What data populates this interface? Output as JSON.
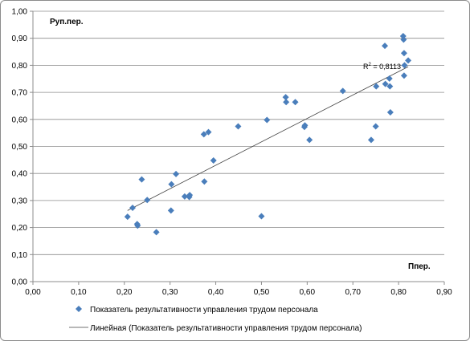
{
  "chart_data": {
    "type": "scatter",
    "x_ticks": [
      "0,00",
      "0,10",
      "0,20",
      "0,30",
      "0,40",
      "0,50",
      "0,60",
      "0,70",
      "0,80",
      "0,90"
    ],
    "y_ticks": [
      "0,00",
      "0,10",
      "0,20",
      "0,30",
      "0,40",
      "0,50",
      "0,60",
      "0,70",
      "0,80",
      "0,90",
      "1,00"
    ],
    "xlim": [
      0,
      0.9
    ],
    "ylim": [
      0,
      1.0
    ],
    "xlabel": "Ппер.",
    "ylabel": "Руп.пер.",
    "grid": "horizontal",
    "legend_position": "bottom",
    "annotation": {
      "prefix": "R",
      "superscript": "2",
      "text": " = 0,8113"
    },
    "series": [
      {
        "name": "Показатель результативности управления трудом персонала",
        "color": "#4a7ebb",
        "marker": "diamond",
        "points": [
          [
            0.207,
            0.24
          ],
          [
            0.218,
            0.273
          ],
          [
            0.228,
            0.213
          ],
          [
            0.229,
            0.207
          ],
          [
            0.238,
            0.378
          ],
          [
            0.25,
            0.302
          ],
          [
            0.27,
            0.183
          ],
          [
            0.302,
            0.263
          ],
          [
            0.303,
            0.36
          ],
          [
            0.313,
            0.398
          ],
          [
            0.332,
            0.315
          ],
          [
            0.342,
            0.313
          ],
          [
            0.343,
            0.32
          ],
          [
            0.374,
            0.545
          ],
          [
            0.375,
            0.37
          ],
          [
            0.384,
            0.553
          ],
          [
            0.395,
            0.448
          ],
          [
            0.449,
            0.574
          ],
          [
            0.5,
            0.242
          ],
          [
            0.512,
            0.598
          ],
          [
            0.553,
            0.682
          ],
          [
            0.554,
            0.664
          ],
          [
            0.574,
            0.664
          ],
          [
            0.594,
            0.572
          ],
          [
            0.595,
            0.578
          ],
          [
            0.605,
            0.524
          ],
          [
            0.678,
            0.705
          ],
          [
            0.74,
            0.524
          ],
          [
            0.75,
            0.574
          ],
          [
            0.751,
            0.722
          ],
          [
            0.77,
            0.872
          ],
          [
            0.771,
            0.731
          ],
          [
            0.78,
            0.751
          ],
          [
            0.781,
            0.722
          ],
          [
            0.782,
            0.626
          ],
          [
            0.81,
            0.908
          ],
          [
            0.811,
            0.895
          ],
          [
            0.812,
            0.845
          ],
          [
            0.812,
            0.762
          ],
          [
            0.813,
            0.8
          ],
          [
            0.821,
            0.818
          ]
        ]
      },
      {
        "name": "Линейная (Показатель результативности управления трудом персонала)",
        "color": "#404040",
        "type": "line",
        "points": [
          [
            0.207,
            0.263
          ],
          [
            0.821,
            0.795
          ]
        ]
      }
    ]
  }
}
